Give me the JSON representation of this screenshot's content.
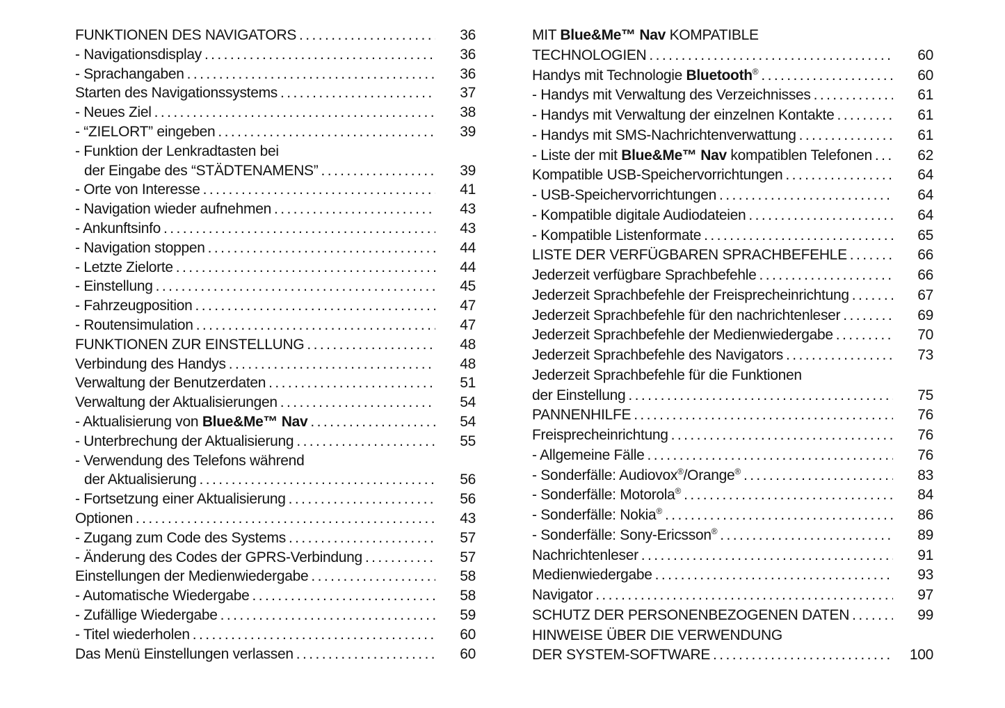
{
  "page": {
    "background": "#ffffff",
    "text_color": "#121212",
    "language": "de"
  },
  "toc": {
    "columns": [
      {
        "entries": [
          {
            "segments": [
              [
                "FUNKTIONEN DES NAVIGATORS",
                "r"
              ]
            ],
            "page": "36",
            "indent": false
          },
          {
            "segments": [
              [
                "- Navigationsdisplay",
                "r"
              ]
            ],
            "page": "36",
            "indent": false
          },
          {
            "segments": [
              [
                "- Sprachangaben",
                "r"
              ]
            ],
            "page": "36",
            "indent": false
          },
          {
            "segments": [
              [
                "Starten des Navigationssystems",
                "r"
              ]
            ],
            "page": "37",
            "indent": false
          },
          {
            "segments": [
              [
                "- Neues Ziel",
                "r"
              ]
            ],
            "page": "38",
            "indent": false
          },
          {
            "segments": [
              [
                "- “ZIELORT” eingeben",
                "r"
              ]
            ],
            "page": "39",
            "indent": false
          },
          {
            "segments": [
              [
                "- Funktion der Lenkradtasten bei",
                "r"
              ]
            ],
            "page": "",
            "indent": false
          },
          {
            "segments": [
              [
                "der Eingabe des “STÄDTENAMENS”",
                "r"
              ]
            ],
            "page": "39",
            "indent": true
          },
          {
            "segments": [
              [
                "- Orte von Interesse",
                "r"
              ]
            ],
            "page": "41",
            "indent": false
          },
          {
            "segments": [
              [
                "- Navigation wieder aufnehmen",
                "r"
              ]
            ],
            "page": "43",
            "indent": false
          },
          {
            "segments": [
              [
                "- Ankunftsinfo",
                "r"
              ]
            ],
            "page": "43",
            "indent": false
          },
          {
            "segments": [
              [
                "- Navigation stoppen",
                "r"
              ]
            ],
            "page": "44",
            "indent": false
          },
          {
            "segments": [
              [
                "- Letzte Zielorte",
                "r"
              ]
            ],
            "page": "44",
            "indent": false
          },
          {
            "segments": [
              [
                "- Einstellung",
                "r"
              ]
            ],
            "page": "45",
            "indent": false
          },
          {
            "segments": [
              [
                "- Fahrzeugposition",
                "r"
              ]
            ],
            "page": "47",
            "indent": false
          },
          {
            "segments": [
              [
                "- Routensimulation",
                "r"
              ]
            ],
            "page": "47",
            "indent": false
          },
          {
            "segments": [
              [
                "FUNKTIONEN ZUR EINSTELLUNG",
                "r"
              ]
            ],
            "page": "48",
            "indent": false
          },
          {
            "segments": [
              [
                "Verbindung des Handys",
                "r"
              ]
            ],
            "page": "48",
            "indent": false
          },
          {
            "segments": [
              [
                "Verwaltung der Benutzerdaten",
                "r"
              ]
            ],
            "page": "51",
            "indent": false
          },
          {
            "segments": [
              [
                "Verwaltung der Aktualisierungen",
                "r"
              ]
            ],
            "page": "54",
            "indent": false
          },
          {
            "segments": [
              [
                "- Aktualisierung von ",
                "r"
              ],
              [
                "Blue&Me™ Nav",
                "b"
              ]
            ],
            "page": "54",
            "indent": false
          },
          {
            "segments": [
              [
                "- Unterbrechung der Aktualisierung",
                "r"
              ]
            ],
            "page": "55",
            "indent": false
          },
          {
            "segments": [
              [
                "- Verwendung des Telefons während",
                "r"
              ]
            ],
            "page": "",
            "indent": false
          },
          {
            "segments": [
              [
                "der Aktualisierung",
                "r"
              ]
            ],
            "page": "56",
            "indent": true
          },
          {
            "segments": [
              [
                "- Fortsetzung einer Aktualisierung",
                "r"
              ]
            ],
            "page": "56",
            "indent": false
          },
          {
            "segments": [
              [
                "Optionen",
                "r"
              ]
            ],
            "page": "43",
            "indent": false
          },
          {
            "segments": [
              [
                "- Zugang zum Code des Systems",
                "r"
              ]
            ],
            "page": "57",
            "indent": false
          },
          {
            "segments": [
              [
                "- Änderung des Codes der GPRS-Verbindung",
                "r"
              ]
            ],
            "page": "57",
            "indent": false
          },
          {
            "segments": [
              [
                "Einstellungen der Medienwiedergabe",
                "r"
              ]
            ],
            "page": "58",
            "indent": false
          },
          {
            "segments": [
              [
                "- Automatische Wiedergabe",
                "r"
              ]
            ],
            "page": "58",
            "indent": false
          },
          {
            "segments": [
              [
                "- Zufällige Wiedergabe",
                "r"
              ]
            ],
            "page": "59",
            "indent": false
          },
          {
            "segments": [
              [
                "- Titel wiederholen",
                "r"
              ]
            ],
            "page": "60",
            "indent": false
          },
          {
            "segments": [
              [
                "Das Menü Einstellungen verlassen",
                "r"
              ]
            ],
            "page": "60",
            "indent": false
          }
        ]
      },
      {
        "entries": [
          {
            "segments": [
              [
                "MIT ",
                "r"
              ],
              [
                "Blue&Me™ Nav",
                "b"
              ],
              [
                " KOMPATIBLE",
                "r"
              ]
            ],
            "page": "",
            "indent": false
          },
          {
            "segments": [
              [
                "TECHNOLOGIEN",
                "r"
              ]
            ],
            "page": "60",
            "indent": false
          },
          {
            "segments": [
              [
                "Handys mit Technologie ",
                "r"
              ],
              [
                "Bluetooth",
                "b"
              ],
              [
                "®",
                "sup"
              ]
            ],
            "page": "60",
            "indent": false
          },
          {
            "segments": [
              [
                "- Handys mit Verwaltung des Verzeichnisses",
                "r"
              ]
            ],
            "page": "61",
            "indent": false
          },
          {
            "segments": [
              [
                "- Handys mit Verwaltung der einzelnen Kontakte",
                "r"
              ]
            ],
            "page": "61",
            "indent": false
          },
          {
            "segments": [
              [
                "- Handys mit SMS-Nachrichtenverwattung",
                "r"
              ]
            ],
            "page": "61",
            "indent": false
          },
          {
            "segments": [
              [
                "- Liste der mit ",
                "r"
              ],
              [
                "Blue&Me™ Nav",
                "b"
              ],
              [
                " kompatiblen Telefonen",
                "r"
              ]
            ],
            "page": "62",
            "indent": false
          },
          {
            "segments": [
              [
                "Kompatible USB-Speichervorrichtungen",
                "r"
              ]
            ],
            "page": "64",
            "indent": false
          },
          {
            "segments": [
              [
                "- USB-Speichervorrichtungen",
                "r"
              ]
            ],
            "page": "64",
            "indent": false
          },
          {
            "segments": [
              [
                "- Kompatible digitale Audiodateien",
                "r"
              ]
            ],
            "page": "64",
            "indent": false
          },
          {
            "segments": [
              [
                "- Kompatible Listenformate",
                "r"
              ]
            ],
            "page": "65",
            "indent": false
          },
          {
            "segments": [
              [
                "LISTE DER VERFÜGBAREN SPRACHBEFEHLE",
                "r"
              ]
            ],
            "page": "66",
            "indent": false
          },
          {
            "segments": [
              [
                "Jederzeit verfügbare Sprachbefehle",
                "r"
              ]
            ],
            "page": "66",
            "indent": false
          },
          {
            "segments": [
              [
                "Jederzeit Sprachbefehle der Freisprecheinrichtung",
                "r"
              ]
            ],
            "page": "67",
            "indent": false
          },
          {
            "segments": [
              [
                "Jederzeit Sprachbefehle für den nachrichtenleser",
                "r"
              ]
            ],
            "page": "69",
            "indent": false
          },
          {
            "segments": [
              [
                "Jederzeit Sprachbefehle der Medienwiedergabe",
                "r"
              ]
            ],
            "page": "70",
            "indent": false
          },
          {
            "segments": [
              [
                "Jederzeit Sprachbefehle des Navigators",
                "r"
              ]
            ],
            "page": "73",
            "indent": false
          },
          {
            "segments": [
              [
                "Jederzeit Sprachbefehle für die Funktionen",
                "r"
              ]
            ],
            "page": "",
            "indent": false
          },
          {
            "segments": [
              [
                "der Einstellung",
                "r"
              ]
            ],
            "page": "75",
            "indent": false
          },
          {
            "segments": [
              [
                "PANNENHILFE",
                "r"
              ]
            ],
            "page": "76",
            "indent": false
          },
          {
            "segments": [
              [
                "Freisprecheinrichtung",
                "r"
              ]
            ],
            "page": "76",
            "indent": false
          },
          {
            "segments": [
              [
                "- Allgemeine Fälle",
                "r"
              ]
            ],
            "page": "76",
            "indent": false
          },
          {
            "segments": [
              [
                "- Sonderfälle: Audiovox",
                "r"
              ],
              [
                "®",
                "sup"
              ],
              [
                "/Orange",
                "r"
              ],
              [
                "®",
                "sup"
              ]
            ],
            "page": "83",
            "indent": false
          },
          {
            "segments": [
              [
                "- Sonderfälle: Motorola",
                "r"
              ],
              [
                "®",
                "sup"
              ]
            ],
            "page": "84",
            "indent": false
          },
          {
            "segments": [
              [
                "- Sonderfälle: Nokia",
                "r"
              ],
              [
                "®",
                "sup"
              ]
            ],
            "page": "86",
            "indent": false
          },
          {
            "segments": [
              [
                "- Sonderfälle: Sony-Ericsson",
                "r"
              ],
              [
                "®",
                "sup"
              ]
            ],
            "page": "89",
            "indent": false
          },
          {
            "segments": [
              [
                "Nachrichtenleser",
                "r"
              ]
            ],
            "page": "91",
            "indent": false
          },
          {
            "segments": [
              [
                "Medienwiedergabe",
                "r"
              ]
            ],
            "page": "93",
            "indent": false
          },
          {
            "segments": [
              [
                "Navigator",
                "r"
              ]
            ],
            "page": "97",
            "indent": false
          },
          {
            "segments": [
              [
                "SCHUTZ DER PERSONENBEZOGENEN DATEN",
                "r"
              ]
            ],
            "page": "99",
            "indent": false
          },
          {
            "segments": [
              [
                "HINWEISE ÜBER DIE VERWENDUNG",
                "r"
              ]
            ],
            "page": "",
            "indent": false
          },
          {
            "segments": [
              [
                "DER SYSTEM-SOFTWARE",
                "r"
              ]
            ],
            "page": "100",
            "indent": false
          }
        ]
      }
    ]
  }
}
